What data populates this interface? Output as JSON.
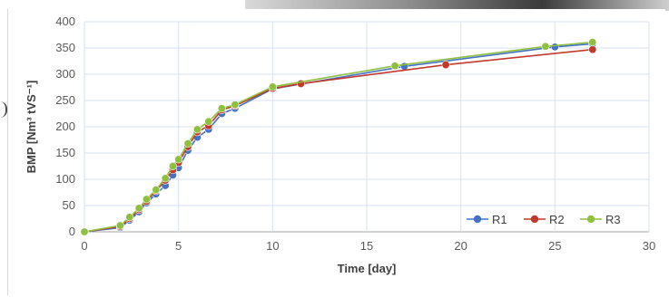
{
  "chart_data": {
    "type": "line",
    "title": "",
    "xlabel": "Time [day]",
    "ylabel": "BMP [Nm³ tVS⁻¹]",
    "xlim": [
      0,
      30
    ],
    "ylim": [
      0,
      400
    ],
    "xticks": [
      0,
      5,
      10,
      15,
      20,
      25,
      30
    ],
    "yticks": [
      0,
      50,
      100,
      150,
      200,
      250,
      300,
      350,
      400
    ],
    "grid": true,
    "legend_position": "bottom-right",
    "series": [
      {
        "name": "R1",
        "color": "#4472c4",
        "x": [
          0,
          1.9,
          2.4,
          2.9,
          3.3,
          3.8,
          4.3,
          4.7,
          5.0,
          5.5,
          6.0,
          6.6,
          7.3,
          8.0,
          10.0,
          17.0,
          25.0,
          27.0
        ],
        "y": [
          0,
          8,
          22,
          38,
          55,
          72,
          88,
          108,
          122,
          155,
          180,
          195,
          225,
          235,
          272,
          315,
          352,
          358
        ]
      },
      {
        "name": "R2",
        "color": "#c0392b",
        "x": [
          0,
          1.9,
          2.4,
          2.9,
          3.3,
          3.8,
          4.3,
          4.7,
          5.0,
          5.5,
          6.0,
          6.6,
          7.3,
          8.0,
          10.0,
          11.5,
          19.2,
          27.0
        ],
        "y": [
          0,
          10,
          25,
          42,
          58,
          78,
          98,
          118,
          132,
          162,
          190,
          202,
          232,
          240,
          273,
          282,
          318,
          347
        ]
      },
      {
        "name": "R3",
        "color": "#8fbf3f",
        "x": [
          0,
          1.9,
          2.4,
          2.9,
          3.3,
          3.8,
          4.3,
          4.7,
          5.0,
          5.5,
          6.0,
          6.6,
          7.3,
          8.0,
          10.0,
          16.5,
          24.5,
          27.0
        ],
        "y": [
          0,
          12,
          28,
          45,
          62,
          80,
          102,
          125,
          138,
          168,
          195,
          210,
          235,
          242,
          276,
          316,
          353,
          361
        ]
      }
    ]
  }
}
